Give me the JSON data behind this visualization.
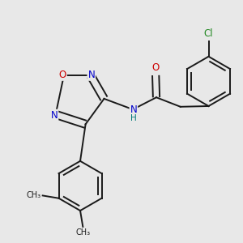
{
  "bg_color": "#e8e8e8",
  "bond_color": "#1a1a1a",
  "bond_width": 1.4,
  "atom_colors": {
    "N": "#0000cc",
    "O": "#cc0000",
    "Cl": "#228822",
    "C": "#1a1a1a",
    "H": "#007777"
  },
  "font_size": 8.5
}
